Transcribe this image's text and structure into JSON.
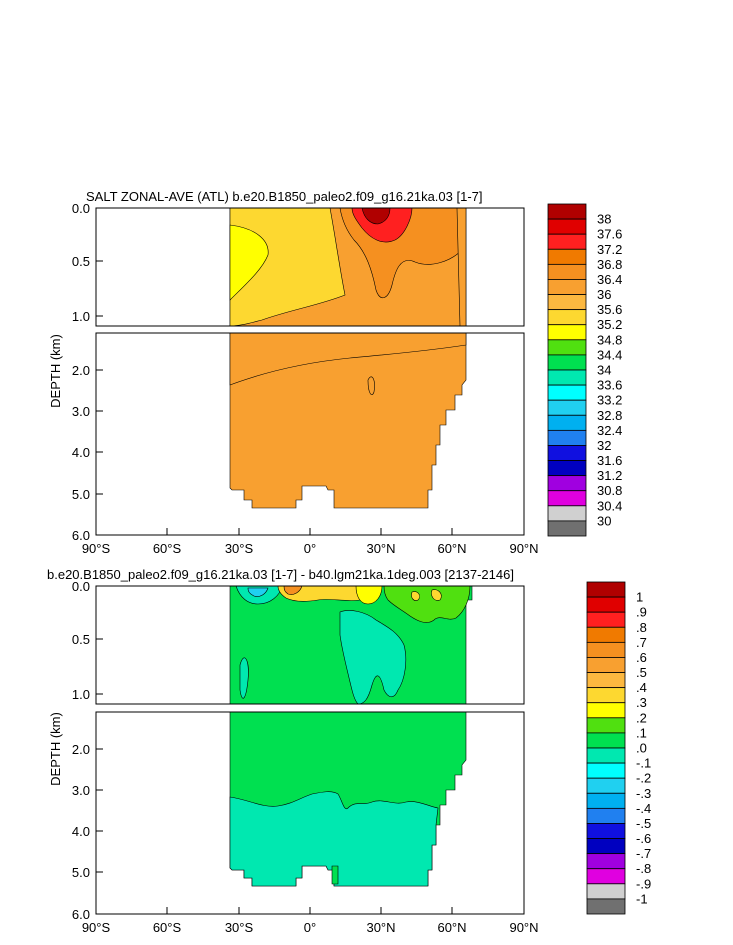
{
  "chart_data": [
    {
      "type": "heatmap",
      "title": "SALT ZONAL-AVE (ATL) b.e20.B1850_paleo2.f09_g16.21ka.03 [1-7]",
      "ylabel": "DEPTH (km)",
      "xlabel": "",
      "x_ticks": [
        "90°S",
        "60°S",
        "30°S",
        "0°",
        "30°N",
        "60°N",
        "90°N"
      ],
      "upper_y_ticks": [
        "0.0",
        "0.5",
        "1.0"
      ],
      "lower_y_ticks": [
        "2.0",
        "3.0",
        "4.0",
        "5.0",
        "6.0"
      ],
      "xlim": [
        -90,
        90
      ],
      "ylim_upper_km": [
        0,
        1.1
      ],
      "ylim_lower_km": [
        1.1,
        6.0
      ],
      "legend_position": "right",
      "colorbar_labels": [
        "38",
        "37.6",
        "37.2",
        "36.8",
        "36.4",
        "36",
        "35.6",
        "35.2",
        "34.8",
        "34.4",
        "34",
        "33.6",
        "33.2",
        "32.8",
        "32.4",
        "32",
        "31.6",
        "31.2",
        "30.8",
        "30.4",
        "30"
      ],
      "colorbar_colors": [
        "#b00000",
        "#e00000",
        "#ff2020",
        "#f07a00",
        "#f59020",
        "#f8a030",
        "#fcb840",
        "#fdd830",
        "#ffff00",
        "#50e010",
        "#00e050",
        "#00e8b0",
        "#00ffff",
        "#20d0f0",
        "#00b0f0",
        "#2080f0",
        "#1010e0",
        "#0000c0",
        "#a000e0",
        "#e000e0",
        "#d0d0d0",
        "#707070"
      ],
      "regions": [
        {
          "name": "shelf",
          "value": 35.6
        },
        {
          "name": "south-subtropical-surface",
          "value": 35.2
        },
        {
          "name": "south-fresh-core",
          "value": 34.8
        },
        {
          "name": "north-surface",
          "value": 36.4
        },
        {
          "name": "north-salty-core",
          "value": 37.6
        },
        {
          "name": "deep",
          "value": 35.6
        }
      ]
    },
    {
      "type": "heatmap",
      "title": "b.e20.B1850_paleo2.f09_g16.21ka.03 [1-7] - b40.lgm21ka.1deg.003 [2137-2146]",
      "ylabel": "DEPTH (km)",
      "xlabel": "",
      "x_ticks": [
        "90°S",
        "60°S",
        "30°S",
        "0°",
        "30°N",
        "60°N",
        "90°N"
      ],
      "upper_y_ticks": [
        "0.0",
        "0.5",
        "1.0"
      ],
      "lower_y_ticks": [
        "2.0",
        "3.0",
        "4.0",
        "5.0",
        "6.0"
      ],
      "xlim": [
        -90,
        90
      ],
      "ylim_upper_km": [
        0,
        1.1
      ],
      "ylim_lower_km": [
        1.1,
        6.0
      ],
      "legend_position": "right",
      "colorbar_labels": [
        "1",
        ".9",
        ".8",
        ".7",
        ".6",
        ".5",
        ".4",
        ".3",
        ".2",
        ".1",
        ".0",
        "-.1",
        "-.2",
        "-.3",
        "-.4",
        "-.5",
        "-.6",
        "-.7",
        "-.8",
        "-.9",
        "-1"
      ],
      "colorbar_colors": [
        "#b00000",
        "#e00000",
        "#ff2020",
        "#f07a00",
        "#f59020",
        "#f8a030",
        "#fcb840",
        "#fdd830",
        "#ffff00",
        "#50e010",
        "#00e050",
        "#00e8b0",
        "#00ffff",
        "#20d0f0",
        "#00b0f0",
        "#2080f0",
        "#1010e0",
        "#0000c0",
        "#a000e0",
        "#e000e0",
        "#d0d0d0",
        "#707070"
      ],
      "regions": [
        {
          "name": "mid-depth-band",
          "value": 0.05
        },
        {
          "name": "upper-fresh-tongue",
          "value": -0.05
        },
        {
          "name": "deep-fresh-layer",
          "value": -0.05
        },
        {
          "name": "surface-positive",
          "value": 0.3
        }
      ]
    }
  ]
}
